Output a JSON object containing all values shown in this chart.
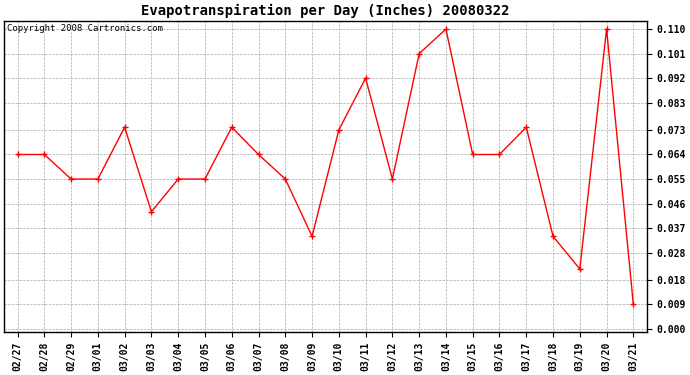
{
  "title": "Evapotranspiration per Day (Inches) 20080322",
  "copyright": "Copyright 2008 Cartronics.com",
  "x_labels": [
    "02/27",
    "02/28",
    "02/29",
    "03/01",
    "03/02",
    "03/03",
    "03/04",
    "03/05",
    "03/06",
    "03/07",
    "03/08",
    "03/09",
    "03/10",
    "03/11",
    "03/12",
    "03/13",
    "03/14",
    "03/15",
    "03/16",
    "03/17",
    "03/18",
    "03/19",
    "03/20",
    "03/21"
  ],
  "y_values": [
    0.064,
    0.064,
    0.055,
    0.055,
    0.074,
    0.043,
    0.055,
    0.055,
    0.074,
    0.064,
    0.055,
    0.034,
    0.073,
    0.092,
    0.055,
    0.101,
    0.11,
    0.064,
    0.064,
    0.074,
    0.034,
    0.022,
    0.11,
    0.009
  ],
  "line_color": "#ff0000",
  "marker": "+",
  "marker_size": 4,
  "marker_linewidth": 1.0,
  "line_width": 1.0,
  "background_color": "#ffffff",
  "plot_bg_color": "#ffffff",
  "grid_color": "#aaaaaa",
  "ylim_min": 0.0,
  "ylim_max": 0.11,
  "y_ticks": [
    0.0,
    0.009,
    0.018,
    0.028,
    0.037,
    0.046,
    0.055,
    0.064,
    0.073,
    0.083,
    0.092,
    0.101,
    0.11
  ],
  "title_fontsize": 10,
  "copyright_fontsize": 6.5,
  "tick_fontsize": 7
}
